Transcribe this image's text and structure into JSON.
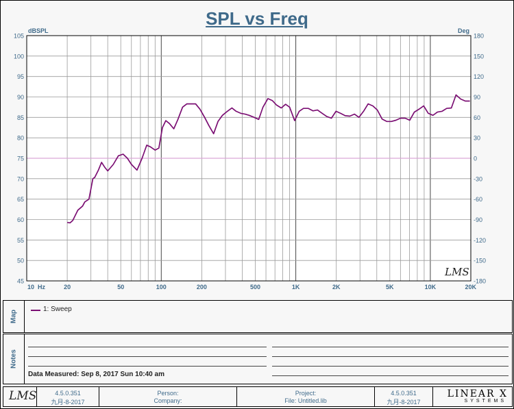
{
  "chart_data": {
    "type": "line",
    "title": "SPL vs Freq",
    "ylabel_left": "dBSPL",
    "ylabel_right": "Deg",
    "xscale": "log",
    "xlim": [
      10,
      20000
    ],
    "ylim": [
      45,
      105
    ],
    "y2lim": [
      -180,
      180
    ],
    "grid": true,
    "x_tick_labels": [
      {
        "value": 10,
        "label": "10  Hz"
      },
      {
        "value": 20,
        "label": "20"
      },
      {
        "value": 50,
        "label": "50"
      },
      {
        "value": 100,
        "label": "100"
      },
      {
        "value": 200,
        "label": "200"
      },
      {
        "value": 500,
        "label": "500"
      },
      {
        "value": 1000,
        "label": "1K"
      },
      {
        "value": 2000,
        "label": "2K"
      },
      {
        "value": 5000,
        "label": "5K"
      },
      {
        "value": 10000,
        "label": "10K"
      },
      {
        "value": 20000,
        "label": "20K"
      }
    ],
    "y_ticks": [
      45,
      50,
      55,
      60,
      65,
      70,
      75,
      80,
      85,
      90,
      95,
      100,
      105
    ],
    "y2_ticks": [
      -180,
      -150,
      -120,
      -90,
      -60,
      -30,
      0,
      30,
      60,
      90,
      120,
      150,
      180
    ],
    "phase_reference_deg": 0,
    "series": [
      {
        "name": "1: Sweep",
        "color": "#7b0f73",
        "x": [
          20,
          21,
          22,
          24,
          26,
          27,
          29,
          31,
          32,
          34,
          36,
          38,
          40,
          44,
          48,
          52,
          56,
          60,
          66,
          72,
          78,
          83,
          90,
          96,
          102,
          108,
          115,
          124,
          133,
          144,
          155,
          167,
          180,
          194,
          210,
          226,
          245,
          264,
          285,
          310,
          335,
          360,
          390,
          420,
          450,
          490,
          530,
          570,
          620,
          670,
          720,
          780,
          840,
          900,
          980,
          1060,
          1140,
          1240,
          1340,
          1450,
          1570,
          1700,
          1840,
          1990,
          2150,
          2330,
          2520,
          2730,
          2950,
          3190,
          3450,
          3740,
          4040,
          4380,
          4740,
          5130,
          5550,
          6000,
          6500,
          7030,
          7610,
          8240,
          8920,
          9650,
          10450,
          11300,
          12240,
          13240,
          14340,
          15520,
          16800,
          18180,
          19680
        ],
        "y": [
          59.3,
          59.2,
          59.8,
          62.3,
          63.3,
          64.3,
          65.0,
          70.0,
          70.3,
          72.0,
          74.0,
          72.8,
          71.9,
          73.5,
          75.6,
          76.0,
          75.0,
          73.5,
          72.1,
          75.0,
          78.2,
          77.8,
          77.0,
          77.5,
          82.5,
          84.2,
          83.5,
          82.2,
          84.5,
          87.5,
          88.3,
          88.3,
          88.3,
          87.0,
          85.0,
          83.0,
          81.0,
          84.0,
          85.5,
          86.5,
          87.3,
          86.5,
          86.0,
          85.8,
          85.5,
          85.0,
          84.5,
          87.5,
          89.6,
          89.1,
          88.0,
          87.3,
          88.2,
          87.5,
          84.2,
          86.5,
          87.2,
          87.2,
          86.6,
          86.8,
          86.0,
          85.2,
          84.8,
          86.5,
          86.0,
          85.4,
          85.3,
          85.8,
          85.0,
          86.5,
          88.3,
          87.8,
          86.8,
          84.6,
          84.0,
          84.0,
          84.3,
          84.8,
          84.8,
          84.3,
          86.3,
          87.0,
          87.8,
          86.0,
          85.5,
          86.3,
          86.5,
          87.2,
          87.3,
          90.5,
          89.5,
          89.0,
          89.0
        ]
      }
    ]
  },
  "legend": {
    "items": [
      "1: Sweep"
    ]
  },
  "panels": {
    "map_label": "Map",
    "notes_label": "Notes",
    "data_measured": "Data Measured: Sep 8, 2017 Sun 10:40 am"
  },
  "footer": {
    "logo_text": "LMS",
    "watermark": "LMS",
    "version_left": "4.5.0.351",
    "date_left": "九月-8-2017",
    "person_label": "Person:",
    "company_label": "Company:",
    "project_label": "Project:",
    "file_label": "File: Untitled.lib",
    "version_right": "4.5.0.351",
    "date_right": "九月-8-2017",
    "brand_name": "LINEAR X",
    "brand_sub": "SYSTEMS"
  }
}
